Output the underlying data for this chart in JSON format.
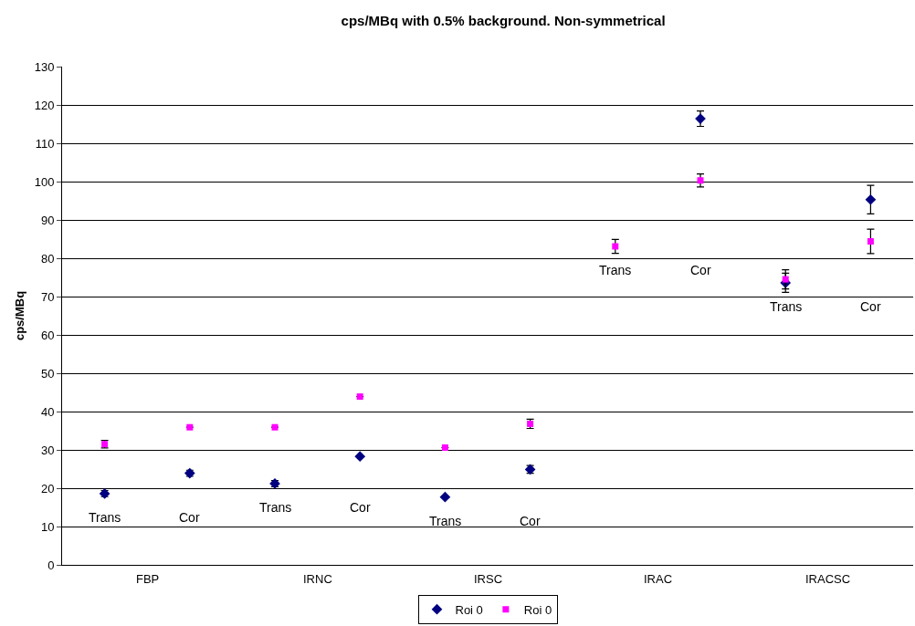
{
  "chart_data": {
    "type": "scatter",
    "title": "cps/MBq with 0.5% background. Non-symmetrical",
    "ylabel": "cps/MBq",
    "categories": [
      null,
      null,
      null,
      null,
      null,
      null,
      null,
      null,
      null,
      null
    ],
    "ylim": [
      0,
      130
    ],
    "yticks": [
      0,
      10,
      20,
      30,
      40,
      50,
      60,
      70,
      80,
      90,
      100,
      110,
      120,
      130
    ],
    "series": [
      {
        "name": "Roi 0",
        "color": "#000080",
        "marker": "diamond",
        "values": [
          18.6,
          23.9,
          21.2,
          28.3,
          17.7,
          24.9,
          null,
          116.4,
          73.6,
          95.3
        ],
        "errors": [
          0.8,
          0.8,
          0.8,
          null,
          null,
          1,
          null,
          2,
          2.5,
          3.7
        ]
      },
      {
        "name": "Roi 0",
        "color": "#ff00ff",
        "marker": "square",
        "values": [
          31.5,
          35.9,
          35.9,
          43.9,
          30.6,
          36.8,
          83.1,
          100.3,
          74.5,
          84.4
        ],
        "errors": [
          1,
          null,
          null,
          null,
          null,
          1.2,
          1.8,
          1.7,
          2.5,
          3.2
        ]
      }
    ],
    "annotations": [
      "Trans",
      "Cor",
      "Trans",
      "Cor",
      "Trans",
      "Cor",
      "Trans",
      "Cor",
      "Trans",
      "Cor",
      "FBP",
      "IRNC",
      "IRSC",
      "IRAC",
      "IRACSC"
    ],
    "grid": "y",
    "legend": "bottom"
  }
}
